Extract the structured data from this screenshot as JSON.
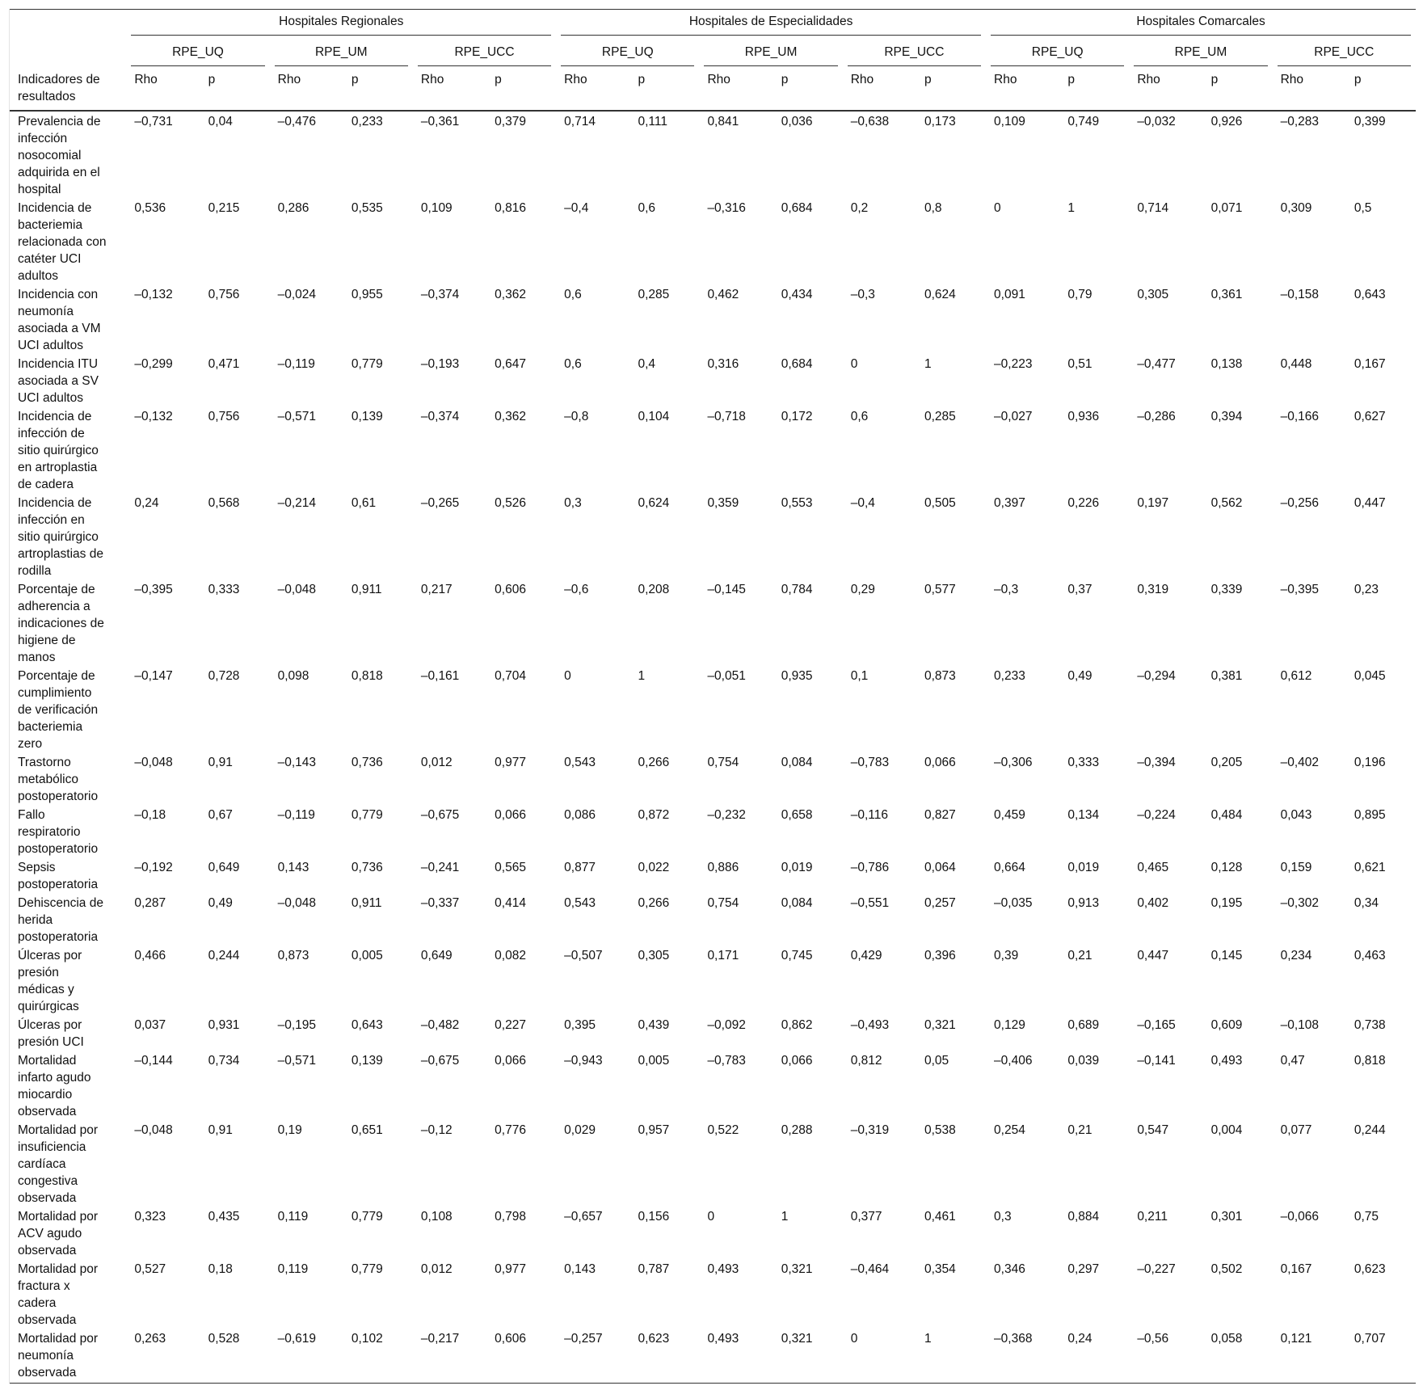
{
  "table": {
    "header": {
      "row_label": "Indicadores de resultados",
      "groups": [
        "Hospitales Regionales",
        "Hospitales de Especialidades",
        "Hospitales Comarcales"
      ],
      "subgroups": [
        "RPE_UQ",
        "RPE_UM",
        "RPE_UCC"
      ],
      "stat_labels": [
        "Rho",
        "p"
      ]
    },
    "rows": [
      {
        "label": "Prevalencia de infección nosocomial adquirida en el hospital",
        "values": [
          "–0,731",
          "0,04",
          "–0,476",
          "0,233",
          "–0,361",
          "0,379",
          "0,714",
          "0,111",
          "0,841",
          "0,036",
          "–0,638",
          "0,173",
          "0,109",
          "0,749",
          "–0,032",
          "0,926",
          "–0,283",
          "0,399"
        ]
      },
      {
        "label": "Incidencia de bacteriemia relacionada con catéter UCI adultos",
        "values": [
          "0,536",
          "0,215",
          "0,286",
          "0,535",
          "0,109",
          "0,816",
          "–0,4",
          "0,6",
          "–0,316",
          "0,684",
          "0,2",
          "0,8",
          "0",
          "1",
          "0,714",
          "0,071",
          "0,309",
          "0,5"
        ]
      },
      {
        "label": "Incidencia con neumonía asociada a VM UCI adultos",
        "values": [
          "–0,132",
          "0,756",
          "–0,024",
          "0,955",
          "–0,374",
          "0,362",
          "0,6",
          "0,285",
          "0,462",
          "0,434",
          "–0,3",
          "0,624",
          "0,091",
          "0,79",
          "0,305",
          "0,361",
          "–0,158",
          "0,643"
        ]
      },
      {
        "label": "Incidencia ITU asociada a SV UCI adultos",
        "values": [
          "–0,299",
          "0,471",
          "–0,119",
          "0,779",
          "–0,193",
          "0,647",
          "0,6",
          "0,4",
          "0,316",
          "0,684",
          "0",
          "1",
          "–0,223",
          "0,51",
          "–0,477",
          "0,138",
          "0,448",
          "0,167"
        ]
      },
      {
        "label": "Incidencia de infección de sitio quirúrgico en artroplastia de cadera",
        "values": [
          "–0,132",
          "0,756",
          "–0,571",
          "0,139",
          "–0,374",
          "0,362",
          "–0,8",
          "0,104",
          "–0,718",
          "0,172",
          "0,6",
          "0,285",
          "–0,027",
          "0,936",
          "–0,286",
          "0,394",
          "–0,166",
          "0,627"
        ]
      },
      {
        "label": "Incidencia de infección en sitio quirúrgico artroplastias de rodilla",
        "values": [
          "0,24",
          "0,568",
          "–0,214",
          "0,61",
          "–0,265",
          "0,526",
          "0,3",
          "0,624",
          "0,359",
          "0,553",
          "–0,4",
          "0,505",
          "0,397",
          "0,226",
          "0,197",
          "0,562",
          "–0,256",
          "0,447"
        ]
      },
      {
        "label": "Porcentaje de adherencia a indicaciones de higiene de manos",
        "values": [
          "–0,395",
          "0,333",
          "–0,048",
          "0,911",
          "0,217",
          "0,606",
          "–0,6",
          "0,208",
          "–0,145",
          "0,784",
          "0,29",
          "0,577",
          "–0,3",
          "0,37",
          "0,319",
          "0,339",
          "–0,395",
          "0,23"
        ]
      },
      {
        "label": "Porcentaje de cumplimiento de verificación bacteriemia zero",
        "values": [
          "–0,147",
          "0,728",
          "0,098",
          "0,818",
          "–0,161",
          "0,704",
          "0",
          "1",
          "–0,051",
          "0,935",
          "0,1",
          "0,873",
          "0,233",
          "0,49",
          "–0,294",
          "0,381",
          "0,612",
          "0,045"
        ]
      },
      {
        "label": "Trastorno metabólico postoperatorio",
        "values": [
          "–0,048",
          "0,91",
          "–0,143",
          "0,736",
          "0,012",
          "0,977",
          "0,543",
          "0,266",
          "0,754",
          "0,084",
          "–0,783",
          "0,066",
          "–0,306",
          "0,333",
          "–0,394",
          "0,205",
          "–0,402",
          "0,196"
        ]
      },
      {
        "label": "Fallo respiratorio postoperatorio",
        "values": [
          "–0,18",
          "0,67",
          "–0,119",
          "0,779",
          "–0,675",
          "0,066",
          "0,086",
          "0,872",
          "–0,232",
          "0,658",
          "–0,116",
          "0,827",
          "0,459",
          "0,134",
          "–0,224",
          "0,484",
          "0,043",
          "0,895"
        ]
      },
      {
        "label": "Sepsis postoperatoria",
        "values": [
          "–0,192",
          "0,649",
          "0,143",
          "0,736",
          "–0,241",
          "0,565",
          "0,877",
          "0,022",
          "0,886",
          "0,019",
          "–0,786",
          "0,064",
          "0,664",
          "0,019",
          "0,465",
          "0,128",
          "0,159",
          "0,621"
        ]
      },
      {
        "label": "Dehiscencia de herida postoperatoria",
        "values": [
          "0,287",
          "0,49",
          "–0,048",
          "0,911",
          "–0,337",
          "0,414",
          "0,543",
          "0,266",
          "0,754",
          "0,084",
          "–0,551",
          "0,257",
          "–0,035",
          "0,913",
          "0,402",
          "0,195",
          "–0,302",
          "0,34"
        ]
      },
      {
        "label": "Úlceras por presión médicas y quirúrgicas",
        "values": [
          "0,466",
          "0,244",
          "0,873",
          "0,005",
          "0,649",
          "0,082",
          "–0,507",
          "0,305",
          "0,171",
          "0,745",
          "0,429",
          "0,396",
          "0,39",
          "0,21",
          "0,447",
          "0,145",
          "0,234",
          "0,463"
        ]
      },
      {
        "label": "Úlceras por presión UCI",
        "values": [
          "0,037",
          "0,931",
          "–0,195",
          "0,643",
          "–0,482",
          "0,227",
          "0,395",
          "0,439",
          "–0,092",
          "0,862",
          "–0,493",
          "0,321",
          "0,129",
          "0,689",
          "–0,165",
          "0,609",
          "–0,108",
          "0,738"
        ]
      },
      {
        "label": "Mortalidad infarto agudo miocardio observada",
        "values": [
          "–0,144",
          "0,734",
          "–0,571",
          "0,139",
          "–0,675",
          "0,066",
          "–0,943",
          "0,005",
          "–0,783",
          "0,066",
          "0,812",
          "0,05",
          "–0,406",
          "0,039",
          "–0,141",
          "0,493",
          "0,47",
          "0,818"
        ]
      },
      {
        "label": "Mortalidad por insuficiencia cardíaca congestiva observada",
        "values": [
          "–0,048",
          "0,91",
          "0,19",
          "0,651",
          "–0,12",
          "0,776",
          "0,029",
          "0,957",
          "0,522",
          "0,288",
          "–0,319",
          "0,538",
          "0,254",
          "0,21",
          "0,547",
          "0,004",
          "0,077",
          "0,244"
        ]
      },
      {
        "label": "Mortalidad por ACV agudo observada",
        "values": [
          "0,323",
          "0,435",
          "0,119",
          "0,779",
          "0,108",
          "0,798",
          "–0,657",
          "0,156",
          "0",
          "1",
          "0,377",
          "0,461",
          "0,3",
          "0,884",
          "0,211",
          "0,301",
          "–0,066",
          "0,75"
        ]
      },
      {
        "label": "Mortalidad por fractura x cadera observada",
        "values": [
          "0,527",
          "0,18",
          "0,119",
          "0,779",
          "0,012",
          "0,977",
          "0,143",
          "0,787",
          "0,493",
          "0,321",
          "–0,464",
          "0,354",
          "0,346",
          "0,297",
          "–0,227",
          "0,502",
          "0,167",
          "0,623"
        ]
      },
      {
        "label": "Mortalidad por neumonía observada",
        "values": [
          "0,263",
          "0,528",
          "–0,619",
          "0,102",
          "–0,217",
          "0,606",
          "–0,257",
          "0,623",
          "0,493",
          "0,321",
          "0",
          "1",
          "–0,368",
          "0,24",
          "–0,56",
          "0,058",
          "0,121",
          "0,707"
        ]
      }
    ]
  }
}
